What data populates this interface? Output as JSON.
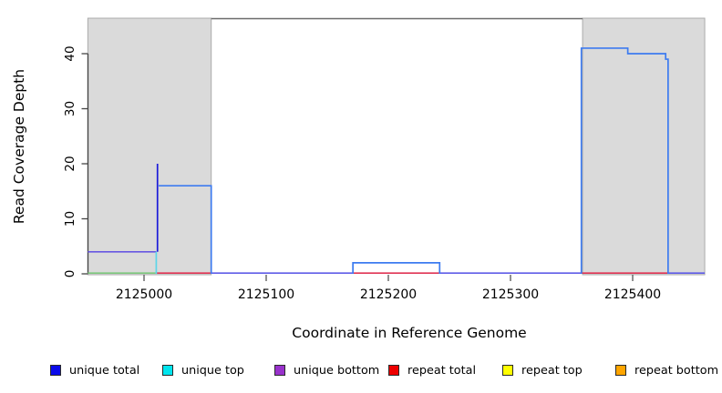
{
  "chart_data": {
    "type": "step-line-coverage",
    "title": "",
    "xlabel": "Coordinate in Reference Genome",
    "ylabel": "Read Coverage Depth",
    "xlim": [
      2124954,
      2125459
    ],
    "ylim": [
      0,
      46
    ],
    "x_ticks": [
      "2125000",
      "2125100",
      "2125200",
      "2125300",
      "2125400"
    ],
    "x_tick_values": [
      2125000,
      2125100,
      2125200,
      2125300,
      2125400
    ],
    "y_ticks": [
      "0",
      "10",
      "20",
      "30",
      "40"
    ],
    "y_tick_values": [
      0,
      10,
      20,
      30,
      40
    ],
    "grid": "off",
    "repeat_regions": [
      {
        "start": 2124954,
        "end": 2125055
      },
      {
        "start": 2125359,
        "end": 2125459
      }
    ],
    "series": [
      {
        "name": "unique-bottom-level-4",
        "color": "#6858e2",
        "points": [
          [
            2124954,
            4
          ],
          [
            2125010,
            4
          ]
        ]
      },
      {
        "name": "unique-top-drop",
        "color": "#5cd6e8",
        "points": [
          [
            2125010,
            4
          ],
          [
            2125010,
            0
          ]
        ]
      },
      {
        "name": "unique-total-spike-20",
        "color": "#1a1ad9",
        "points": [
          [
            2125011,
            20
          ],
          [
            2125011,
            4
          ]
        ]
      },
      {
        "name": "coverage-step-left-16",
        "color": "#3d7bf0",
        "points": [
          [
            2125012,
            16
          ],
          [
            2125055,
            16
          ],
          [
            2125055,
            0
          ]
        ]
      },
      {
        "name": "coverage-step-mid-2",
        "color": "#3d7bf0",
        "points": [
          [
            2125171,
            0
          ],
          [
            2125171,
            2
          ],
          [
            2125242,
            2
          ],
          [
            2125242,
            0
          ]
        ]
      },
      {
        "name": "coverage-step-right-41-40",
        "color": "#3d7bf0",
        "points": [
          [
            2125358,
            0
          ],
          [
            2125358,
            41
          ],
          [
            2125396,
            41
          ],
          [
            2125396,
            40
          ],
          [
            2125427,
            40
          ],
          [
            2125427,
            39
          ],
          [
            2125429,
            39
          ],
          [
            2125429,
            0
          ]
        ]
      }
    ],
    "baseline_segments": [
      {
        "color": "#7cc87c",
        "from": 2124954,
        "to": 2125010
      },
      {
        "color": "#e03454",
        "from": 2125010,
        "to": 2125055
      },
      {
        "color": "#5f5ce8",
        "from": 2125055,
        "to": 2125171
      },
      {
        "color": "#e03454",
        "from": 2125171,
        "to": 2125242
      },
      {
        "color": "#5f5ce8",
        "from": 2125242,
        "to": 2125358
      },
      {
        "color": "#e03454",
        "from": 2125358,
        "to": 2125429
      },
      {
        "color": "#5f5ce8",
        "from": 2125429,
        "to": 2125459
      }
    ],
    "colors": {
      "repeat_region_fill": "#dadada",
      "repeat_region_border": "#ababab",
      "top_border": "#6b6b6b",
      "axis": "#444444",
      "tick": "#555555"
    }
  },
  "legend": {
    "items": [
      {
        "label": "unique total",
        "color": "#0b0bea"
      },
      {
        "label": "unique top",
        "color": "#00e5ee"
      },
      {
        "label": "unique bottom",
        "color": "#9932cc"
      },
      {
        "label": "repeat total",
        "color": "#ee0000"
      },
      {
        "label": "repeat top",
        "color": "#ffff00"
      },
      {
        "label": "repeat bottom",
        "color": "#ffa500"
      }
    ]
  }
}
